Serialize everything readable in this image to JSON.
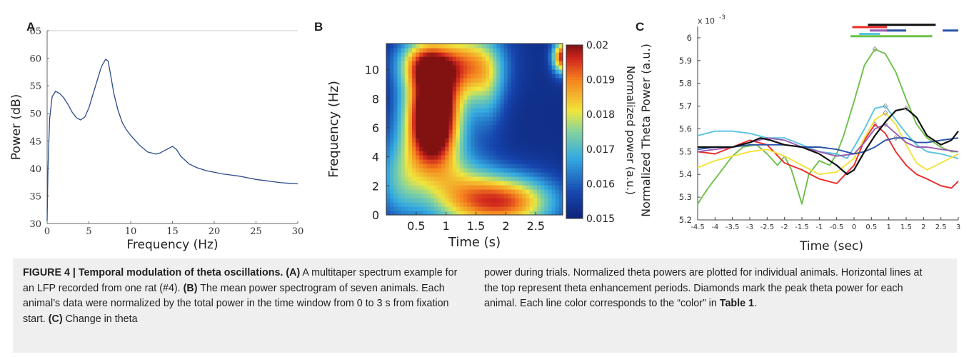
{
  "chart_data": [
    {
      "panel": "A",
      "type": "line",
      "xlabel": "Frequency (Hz)",
      "ylabel": "Power (dB)",
      "xlim": [
        0,
        30
      ],
      "ylim": [
        30,
        65
      ],
      "xticks": [
        0,
        5,
        10,
        15,
        20,
        25,
        30
      ],
      "yticks": [
        30,
        35,
        40,
        45,
        50,
        55,
        60,
        65
      ],
      "color": "#2b4a8b",
      "series": [
        {
          "x": [
            0,
            0.1,
            0.3,
            0.6,
            1.0,
            1.5,
            2.0,
            2.5,
            3.0,
            3.5,
            4.0,
            4.5,
            5.0,
            5.5,
            6.0,
            6.5,
            7.0,
            7.3,
            7.6,
            8.0,
            8.5,
            9.0,
            9.5,
            10.0,
            11.0,
            12.0,
            13.0,
            13.5,
            14.0,
            14.5,
            15.0,
            15.5,
            16.0,
            17.0,
            18.0,
            19.0,
            20.0,
            21.0,
            22.0,
            23.0,
            24.0,
            25.0,
            26.0,
            27.0,
            28.0,
            29.0,
            30.0
          ],
          "y": [
            30.5,
            40,
            49,
            53,
            54,
            53.6,
            52.8,
            51.6,
            50.2,
            49.2,
            48.8,
            49.3,
            51,
            53.5,
            56,
            58.5,
            59.8,
            59.5,
            57,
            53.5,
            50.5,
            48.3,
            47,
            46,
            44.3,
            43,
            42.6,
            42.8,
            43.2,
            43.6,
            44,
            43.4,
            42.2,
            40.8,
            40.1,
            39.6,
            39.3,
            39.0,
            38.8,
            38.6,
            38.3,
            38.0,
            37.8,
            37.6,
            37.4,
            37.3,
            37.2
          ]
        }
      ]
    },
    {
      "panel": "B",
      "type": "heatmap",
      "xlabel": "Time (s)",
      "ylabel": "Frequency (Hz)",
      "colorbar_label": "Normalized power (a.u.)",
      "xticks": [
        0.5,
        1,
        1.5,
        2,
        2.5
      ],
      "xtick_labels": [
        "0.5",
        "1",
        "1.5",
        "2",
        "2.5"
      ],
      "yticks": [
        0,
        2,
        4,
        6,
        8,
        10
      ],
      "yticks_labels": [
        "0",
        "2",
        "4",
        "6",
        "8",
        "10"
      ],
      "xlim": [
        0,
        2.95
      ],
      "ylim": [
        0,
        11.8
      ],
      "clim": [
        0.015,
        0.02
      ],
      "cticks": [
        0.015,
        0.016,
        0.017,
        0.018,
        0.019,
        0.02
      ],
      "ctick_labels": [
        "0.015",
        "0.016",
        "0.017",
        "0.018",
        "0.019",
        "0.02"
      ],
      "blobs": [
        {
          "cx": 0.78,
          "cy": 6.7,
          "sx": 0.32,
          "sy": 2.5,
          "amp": 1.35
        },
        {
          "cx": 0.6,
          "cy": 10.5,
          "sx": 0.3,
          "sy": 1.2,
          "amp": 0.55
        },
        {
          "cx": 1.35,
          "cy": 10.4,
          "sx": 0.4,
          "sy": 1.6,
          "amp": 0.65
        },
        {
          "cx": 2.05,
          "cy": 0.9,
          "sx": 0.55,
          "sy": 1.3,
          "amp": 0.75
        },
        {
          "cx": 1.25,
          "cy": 1.5,
          "sx": 0.45,
          "sy": 1.8,
          "amp": 0.45
        },
        {
          "cx": 1.7,
          "cy": 8.5,
          "sx": 0.2,
          "sy": 2.0,
          "amp": 0.25
        },
        {
          "cx": 2.95,
          "cy": 10.9,
          "sx": 0.12,
          "sy": 0.8,
          "amp": 0.9
        },
        {
          "cx": 0.25,
          "cy": 2.5,
          "sx": 0.3,
          "sy": 2.0,
          "amp": 0.35
        }
      ]
    },
    {
      "panel": "C",
      "type": "line",
      "xlabel": "Time (sec)",
      "ylabel": "Normalized Theta Power (a.u.)",
      "multiplier": "x 10",
      "multiplier_exp": "-3",
      "xlim": [
        -4.5,
        3
      ],
      "ylim": [
        5.2,
        6.05
      ],
      "xticks": [
        -4.5,
        -4,
        -3.5,
        -3,
        -2.5,
        -2,
        -1.5,
        -1,
        -0.5,
        0,
        0.5,
        1,
        1.5,
        2,
        2.5,
        3
      ],
      "xtick_labels": [
        "-4.5",
        "-4",
        "-3.5",
        "-3",
        "-2.5",
        "-2",
        "-1.5",
        "-1",
        "-0.5",
        "0",
        "0.5",
        "1",
        "1.5",
        "2",
        "2.5",
        "3"
      ],
      "yticks": [
        5.2,
        5.3,
        5.4,
        5.5,
        5.6,
        5.7,
        5.8,
        5.9,
        6
      ],
      "ytick_labels": [
        "5.2",
        "5.3",
        "5.4",
        "5.5",
        "5.6",
        "5.7",
        "5.8",
        "5.9",
        "6"
      ],
      "series": [
        {
          "color": "#6cc04a",
          "x": [
            -4.5,
            -4.2,
            -3.8,
            -3.5,
            -3.2,
            -2.8,
            -2.5,
            -2.2,
            -2.0,
            -1.8,
            -1.5,
            -1.3,
            -1.0,
            -0.7,
            -0.5,
            -0.3,
            0,
            0.3,
            0.6,
            0.9,
            1.2,
            1.5,
            1.8,
            2.1,
            2.5,
            2.8,
            3.0
          ],
          "y": [
            5.27,
            5.34,
            5.42,
            5.48,
            5.52,
            5.53,
            5.49,
            5.44,
            5.48,
            5.42,
            5.27,
            5.4,
            5.46,
            5.44,
            5.49,
            5.57,
            5.72,
            5.88,
            5.95,
            5.93,
            5.85,
            5.73,
            5.62,
            5.56,
            5.52,
            5.5,
            5.5
          ]
        },
        {
          "color": "#58c4df",
          "x": [
            -4.5,
            -4.0,
            -3.5,
            -3.0,
            -2.5,
            -2.0,
            -1.5,
            -1.0,
            -0.5,
            -0.2,
            0,
            0.3,
            0.6,
            0.9,
            1.2,
            1.5,
            1.8,
            2.1,
            2.5,
            3.0
          ],
          "y": [
            5.57,
            5.59,
            5.59,
            5.58,
            5.56,
            5.56,
            5.53,
            5.5,
            5.49,
            5.47,
            5.52,
            5.6,
            5.69,
            5.7,
            5.64,
            5.58,
            5.53,
            5.5,
            5.49,
            5.47
          ]
        },
        {
          "color": "#ee2a2a",
          "x": [
            -4.5,
            -4.0,
            -3.5,
            -3.0,
            -2.5,
            -2.0,
            -1.5,
            -1.0,
            -0.5,
            0,
            0.3,
            0.6,
            0.9,
            1.2,
            1.5,
            1.8,
            2.1,
            2.5,
            2.8,
            3.0
          ],
          "y": [
            5.5,
            5.49,
            5.52,
            5.55,
            5.53,
            5.45,
            5.42,
            5.38,
            5.36,
            5.44,
            5.55,
            5.62,
            5.58,
            5.5,
            5.44,
            5.4,
            5.38,
            5.35,
            5.34,
            5.37
          ]
        },
        {
          "color": "#f5e13a",
          "x": [
            -4.5,
            -4.0,
            -3.5,
            -3.0,
            -2.5,
            -2.0,
            -1.5,
            -1.0,
            -0.5,
            0,
            0.3,
            0.6,
            0.9,
            1.2,
            1.5,
            1.8,
            2.1,
            2.5,
            3.0
          ],
          "y": [
            5.43,
            5.46,
            5.48,
            5.5,
            5.51,
            5.48,
            5.44,
            5.4,
            5.41,
            5.47,
            5.56,
            5.64,
            5.67,
            5.62,
            5.53,
            5.45,
            5.42,
            5.45,
            5.49
          ]
        },
        {
          "color": "#9a5bb5",
          "x": [
            -4.5,
            -4.0,
            -3.5,
            -3.0,
            -2.5,
            -2.0,
            -1.5,
            -1.0,
            -0.5,
            0,
            0.3,
            0.6,
            0.9,
            1.2,
            1.5,
            1.8,
            2.1,
            2.5,
            3.0
          ],
          "y": [
            5.5,
            5.51,
            5.52,
            5.54,
            5.56,
            5.55,
            5.52,
            5.5,
            5.48,
            5.49,
            5.54,
            5.6,
            5.62,
            5.58,
            5.54,
            5.52,
            5.52,
            5.51,
            5.5
          ]
        },
        {
          "color": "#2a52a8",
          "x": [
            -4.5,
            -4.0,
            -3.5,
            -3.0,
            -2.5,
            -2.0,
            -1.5,
            -1.0,
            -0.5,
            0,
            0.3,
            0.6,
            0.9,
            1.2,
            1.5,
            1.8,
            2.1,
            2.5,
            3.0
          ],
          "y": [
            5.51,
            5.52,
            5.52,
            5.53,
            5.53,
            5.53,
            5.52,
            5.52,
            5.51,
            5.49,
            5.5,
            5.52,
            5.55,
            5.56,
            5.56,
            5.54,
            5.54,
            5.55,
            5.56
          ]
        },
        {
          "color": "#111111",
          "x": [
            -4.5,
            -4.0,
            -3.5,
            -3.0,
            -2.7,
            -2.4,
            -2.0,
            -1.5,
            -1.0,
            -0.5,
            -0.2,
            0,
            0.3,
            0.6,
            0.9,
            1.2,
            1.5,
            1.8,
            2.1,
            2.5,
            2.8,
            3.0
          ],
          "y": [
            5.52,
            5.52,
            5.52,
            5.54,
            5.56,
            5.55,
            5.53,
            5.52,
            5.49,
            5.44,
            5.4,
            5.42,
            5.5,
            5.57,
            5.63,
            5.68,
            5.69,
            5.65,
            5.57,
            5.53,
            5.55,
            5.59
          ]
        }
      ],
      "enhancement_bars": [
        {
          "color": "#111111",
          "x0": 0.4,
          "x1": 2.35,
          "y": 6.057
        },
        {
          "color": "#ee2a2a",
          "x0": -0.05,
          "x1": 0.95,
          "y": 6.047
        },
        {
          "color": "#2a52a8",
          "x0": 2.55,
          "x1": 3.0,
          "y": 6.032
        },
        {
          "color": "#2a52a8",
          "x0": 0.9,
          "x1": 1.5,
          "y": 6.032
        },
        {
          "color": "#9a5bb5",
          "x0": 0.45,
          "x1": 0.95,
          "y": 6.032
        },
        {
          "color": "#58c4df",
          "x0": 0.15,
          "x1": 0.75,
          "y": 6.017
        },
        {
          "color": "#6cc04a",
          "x0": -0.1,
          "x1": 2.25,
          "y": 6.007
        }
      ]
    }
  ],
  "panels": {
    "a": "A",
    "b": "B",
    "c": "C"
  },
  "caption": {
    "fig_label": "FIGURE 4 | Temporal modulation of theta oscillations.",
    "ref_a": "(A)",
    "text_a": " A multitaper spectrum example for an LFP recorded from one rat (#4). ",
    "ref_b": "(B)",
    "text_b": " The mean power spectrogram of seven animals. Each animal’s data were normalized by the total power in the time window from 0 to 3 s from fixation start. ",
    "ref_c": "(C)",
    "text_c": " Change in theta",
    "right_text": "power during trials. Normalized theta powers are plotted for individual animals. Horizontal lines at the top represent theta enhancement periods. Diamonds mark the peak theta power for each animal. Each line color corresponds to the “color” in ",
    "table_ref": "Table 1",
    "end": "."
  }
}
